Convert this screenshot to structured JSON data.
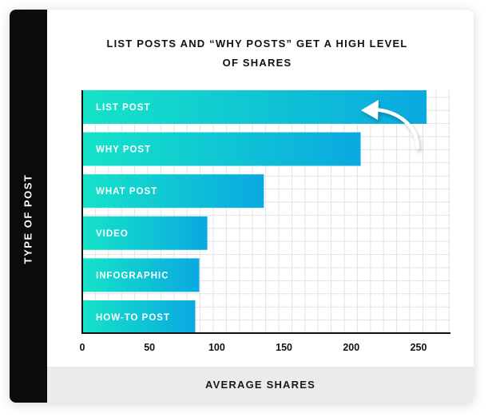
{
  "chart_data": {
    "type": "bar",
    "orientation": "horizontal",
    "title_lines": [
      "LIST POSTS AND “WHY POSTS” GET A HIGH LEVEL",
      "OF SHARES"
    ],
    "xlabel": "AVERAGE SHARES",
    "ylabel": "TYPE OF POST",
    "categories": [
      "LIST POST",
      "WHY POST",
      "WHAT POST",
      "VIDEO",
      "INFOGRAPHIC",
      "HOW-TO POST"
    ],
    "values": [
      256,
      207,
      135,
      93,
      87,
      84
    ],
    "xlim": [
      0,
      280
    ],
    "xticks": [
      0,
      50,
      100,
      150,
      200,
      250
    ],
    "grid": true,
    "annotation": "curved arrow pointing at the LIST POST bar end",
    "colors": {
      "bar_start": "#15e3c8",
      "bar_end": "#0aa9e0",
      "grid": "#e3e3e3",
      "axis": "#111111",
      "y_band": "#0b0b0b",
      "x_band": "#ebebeb"
    }
  }
}
